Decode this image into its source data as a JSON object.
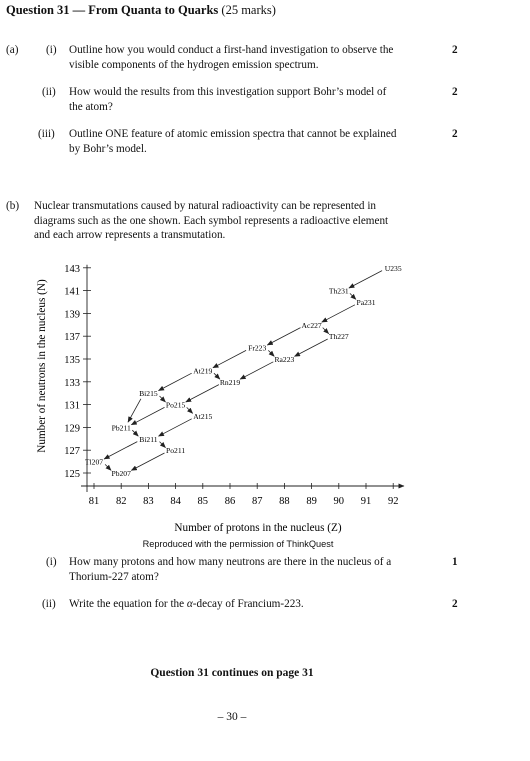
{
  "header": {
    "title_bold": "Question 31 — From Quanta to Quarks",
    "title_rest": " (25 marks)"
  },
  "part_a": {
    "label": "(a)",
    "items": [
      {
        "num": "(i)",
        "line1": "Outline how you would conduct a first-hand investigation to observe the",
        "line2": "visible components of the hydrogen emission spectrum.",
        "marks": "2"
      },
      {
        "num": "(ii)",
        "line1": "How would the results from this investigation support Bohr’s model of",
        "line2": "the atom?",
        "marks": "2"
      },
      {
        "num": "(iii)",
        "line1": "Outline ONE feature of atomic emission spectra that cannot be explained",
        "line2": "by Bohr’s model.",
        "marks": "2"
      }
    ]
  },
  "part_b": {
    "label": "(b)",
    "line1": "Nuclear transmutations caused by natural radioactivity can be represented in",
    "line2": "diagrams such as the one shown. Each symbol represents a radioactive element",
    "line3": "and each arrow represents a transmutation.",
    "credit": "Reproduced with the permission of ThinkQuest",
    "items": [
      {
        "num": "(i)",
        "line1": "How many protons and how many neutrons are there in the nucleus of a",
        "line2": "Thorium-227 atom?",
        "marks": "1"
      },
      {
        "num": "(ii)",
        "line1_pre": "Write the equation for the ",
        "alpha": "α",
        "line1_post": "-decay of Francium-223.",
        "marks": "2"
      }
    ]
  },
  "chart_data": {
    "type": "scatter",
    "xlabel": "Number of protons in the nucleus (Z)",
    "ylabel": "Number of neutrons in the nucleus (N)",
    "xlim": [
      81,
      92
    ],
    "ylim": [
      125,
      143
    ],
    "x_ticks": [
      81,
      82,
      83,
      84,
      85,
      86,
      87,
      88,
      89,
      90,
      91,
      92
    ],
    "y_ticks": [
      125,
      127,
      129,
      131,
      133,
      135,
      137,
      139,
      141,
      143
    ],
    "nuclides": [
      {
        "label": "U235",
        "z": 92,
        "n": 143
      },
      {
        "label": "Th231",
        "z": 90,
        "n": 141
      },
      {
        "label": "Pa231",
        "z": 91,
        "n": 140
      },
      {
        "label": "Ac227",
        "z": 89,
        "n": 138
      },
      {
        "label": "Th227",
        "z": 90,
        "n": 137
      },
      {
        "label": "Fr223",
        "z": 87,
        "n": 136
      },
      {
        "label": "Ra223",
        "z": 88,
        "n": 135
      },
      {
        "label": "At219",
        "z": 85,
        "n": 134
      },
      {
        "label": "Rn219",
        "z": 86,
        "n": 133
      },
      {
        "label": "Bi215",
        "z": 83,
        "n": 132
      },
      {
        "label": "Po215",
        "z": 84,
        "n": 131
      },
      {
        "label": "At215",
        "z": 85,
        "n": 130
      },
      {
        "label": "Pb211",
        "z": 82,
        "n": 129
      },
      {
        "label": "Bi211",
        "z": 83,
        "n": 128
      },
      {
        "label": "Po211",
        "z": 84,
        "n": 127
      },
      {
        "label": "Tl207",
        "z": 81,
        "n": 126
      },
      {
        "label": "Pb207",
        "z": 82,
        "n": 125
      }
    ],
    "transmutations": [
      [
        "U235",
        "Th231"
      ],
      [
        "Th231",
        "Pa231"
      ],
      [
        "Pa231",
        "Ac227"
      ],
      [
        "Ac227",
        "Th227"
      ],
      [
        "Ac227",
        "Fr223"
      ],
      [
        "Th227",
        "Ra223"
      ],
      [
        "Fr223",
        "Ra223"
      ],
      [
        "Fr223",
        "At219"
      ],
      [
        "Ra223",
        "Rn219"
      ],
      [
        "At219",
        "Rn219"
      ],
      [
        "At219",
        "Bi215"
      ],
      [
        "Rn219",
        "Po215"
      ],
      [
        "Bi215",
        "Po215"
      ],
      [
        "Bi215",
        "Pb211"
      ],
      [
        "Po215",
        "At215"
      ],
      [
        "Po215",
        "Pb211"
      ],
      [
        "Pb211",
        "Bi211"
      ],
      [
        "At215",
        "Bi211"
      ],
      [
        "Bi211",
        "Po211"
      ],
      [
        "Bi211",
        "Tl207"
      ],
      [
        "Po211",
        "Pb207"
      ],
      [
        "Tl207",
        "Pb207"
      ]
    ]
  },
  "footer": {
    "continues": "Question 31 continues on page 31",
    "page": "– 30 –"
  }
}
